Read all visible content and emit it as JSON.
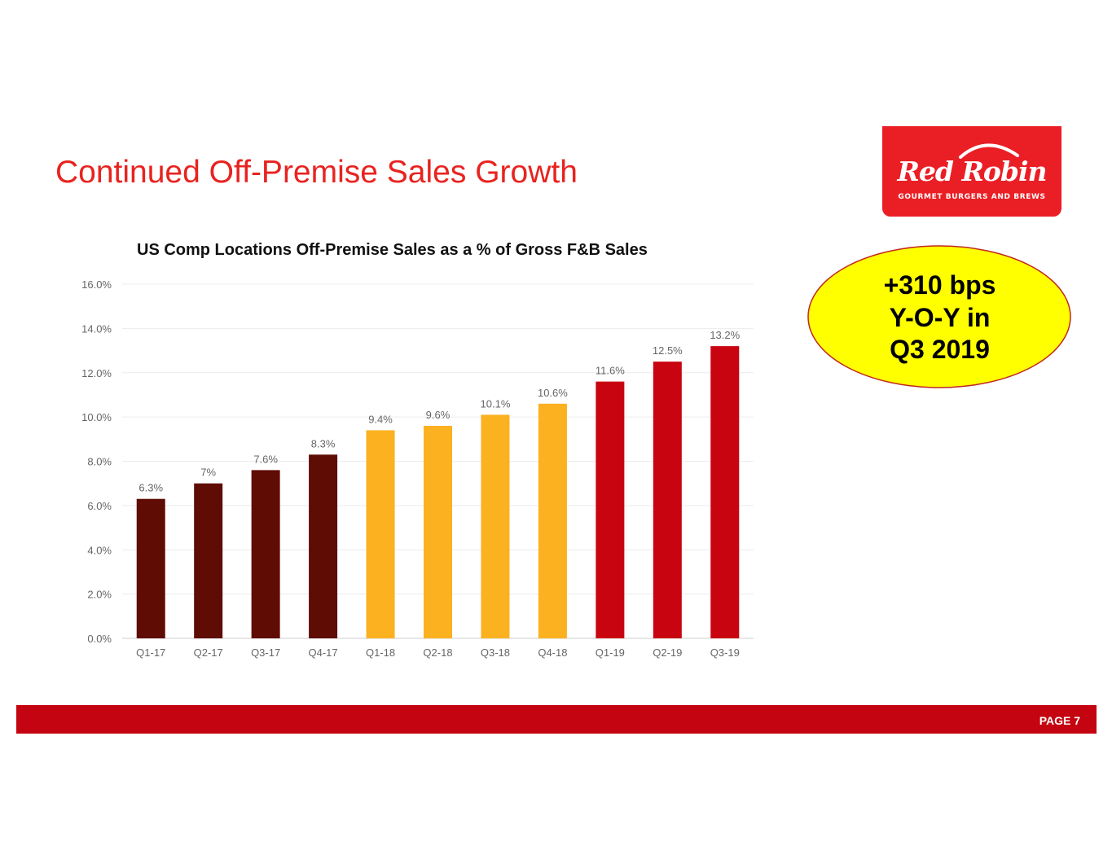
{
  "slide": {
    "title": "Continued Off-Premise Sales Growth",
    "page_label": "PAGE 7"
  },
  "logo": {
    "wordmark": "Red Robin",
    "tagline": "GOURMET BURGERS AND BREWS",
    "background_color": "#ea1f25"
  },
  "callout": {
    "line1": "+310 bps",
    "line2": "Y-O-Y in",
    "line3": "Q3 2019",
    "fill_color": "#ffff00",
    "border_color": "#c0281e"
  },
  "colors": {
    "title": "#e8231f",
    "footer": "#c40410"
  },
  "chart_data": {
    "type": "bar",
    "title": "US Comp Locations Off-Premise Sales as a % of Gross F&B Sales",
    "xlabel": "",
    "ylabel": "",
    "ylim": [
      0,
      16
    ],
    "yticks": [
      "0.0%",
      "2.0%",
      "4.0%",
      "6.0%",
      "8.0%",
      "10.0%",
      "12.0%",
      "14.0%",
      "16.0%"
    ],
    "grid": true,
    "categories": [
      "Q1-17",
      "Q2-17",
      "Q3-17",
      "Q4-17",
      "Q1-18",
      "Q2-18",
      "Q3-18",
      "Q4-18",
      "Q1-19",
      "Q2-19",
      "Q3-19"
    ],
    "values": [
      6.3,
      7.0,
      7.6,
      8.3,
      9.4,
      9.6,
      10.1,
      10.6,
      11.6,
      12.5,
      13.2
    ],
    "data_labels": [
      "6.3%",
      "7%",
      "7.6%",
      "8.3%",
      "9.4%",
      "9.6%",
      "10.1%",
      "10.6%",
      "11.6%",
      "12.5%",
      "13.2%"
    ],
    "bar_colors": [
      "#5e0c04",
      "#5e0c04",
      "#5e0c04",
      "#5e0c04",
      "#fbb120",
      "#fbb120",
      "#fbb120",
      "#fbb120",
      "#c80410",
      "#c80410",
      "#c80410"
    ]
  }
}
